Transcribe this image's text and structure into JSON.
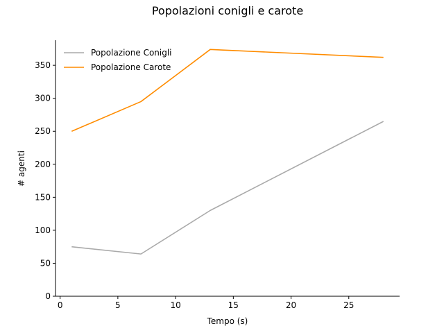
{
  "chart_data": {
    "type": "line",
    "title": "Popolazioni conigli e carote",
    "xlabel": "Tempo (s)",
    "ylabel": "# agenti",
    "xlim": [
      -0.4,
      29.4
    ],
    "ylim": [
      0,
      388
    ],
    "xticks": [
      0,
      5,
      10,
      15,
      20,
      25
    ],
    "yticks": [
      0,
      50,
      100,
      150,
      200,
      250,
      300,
      350
    ],
    "grid": false,
    "legend_position": "top-left",
    "series": [
      {
        "name": "Popolazione Conigli",
        "color": "#aaaaaa",
        "x": [
          1,
          7,
          13,
          28
        ],
        "y": [
          75,
          64,
          130,
          265
        ]
      },
      {
        "name": "Popolazione Carote",
        "color": "#ff8c00",
        "x": [
          1,
          7,
          13,
          28
        ],
        "y": [
          250,
          295,
          374,
          362
        ]
      }
    ]
  }
}
